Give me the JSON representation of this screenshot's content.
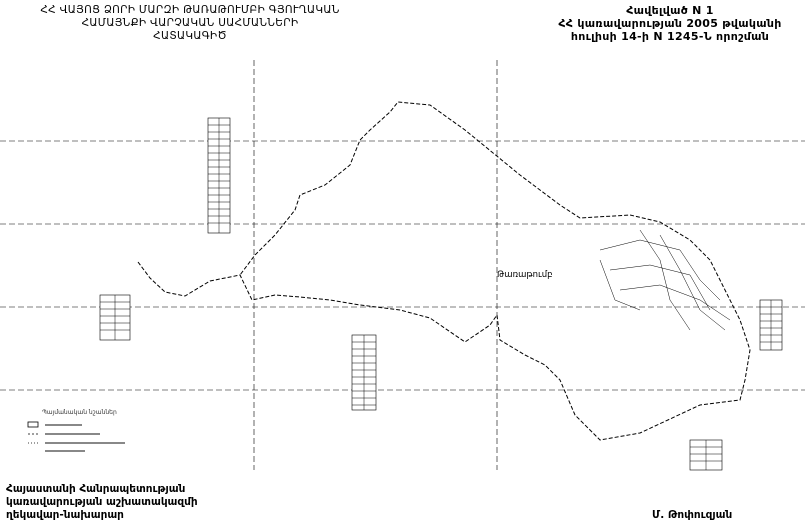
{
  "title": {
    "lines": [
      "ՀՀ ՎԱՅՈՑ ՁՈՐԻ ՄԱՐԶԻ ԹԱՌԱԹՈՒՄԲԻ ԳՅՈՒՂԱԿԱՆ",
      "ՀԱՄԱՅՆՔԻ ՎԱՐՉԱԿԱՆ   ՍԱՀՄԱՆՆԵՐԻ",
      "ՀԱՏԱԿԱԳԻԾ"
    ]
  },
  "annex": {
    "lines": [
      "Հավելված N 1",
      "ՀՀ կառավարության 2005 թվականի",
      "հուլիսի 14-ի N 1245-Ն որոշման"
    ]
  },
  "map": {
    "village_label": "Թառաթումբ",
    "legend_title": "Պայմանական նշաններ",
    "line_color": "#000000"
  },
  "footer": {
    "left_lines": [
      "Հայաստանի Հանրապետության",
      "կառավարության աշխատակազմի",
      "ղեկավար-նախարար"
    ],
    "signer": "Մ. Թոփուզյան"
  }
}
